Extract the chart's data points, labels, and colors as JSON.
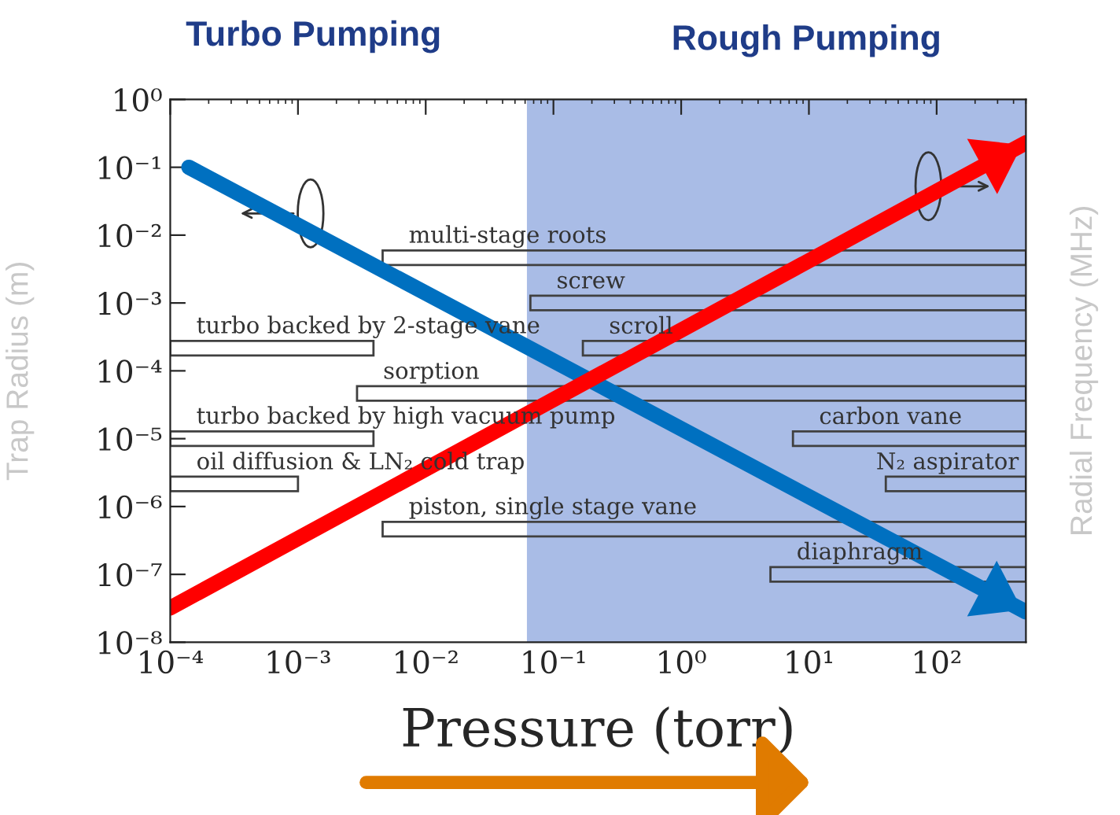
{
  "chart_data": [
    {
      "type": "bar",
      "orientation": "horizontal",
      "log": "x",
      "tick_labels": "x",
      "xlim": [
        0.0001,
        500
      ],
      "xticks": [
        {
          "value": 0.0001,
          "label": "10⁻⁴"
        },
        {
          "value": 0.001,
          "label": "10⁻³"
        },
        {
          "value": 0.01,
          "label": "10⁻²"
        },
        {
          "value": 0.1,
          "label": "10⁻¹"
        },
        {
          "value": 1,
          "label": "10⁰"
        },
        {
          "value": 10,
          "label": "10¹"
        },
        {
          "value": 100,
          "label": "10²"
        }
      ],
      "categories": [
        null,
        null,
        null,
        null,
        null,
        null,
        null,
        null,
        null,
        null,
        null,
        null
      ],
      "series": [
        {
          "color": "#404040",
          "base": [
            null,
            null,
            null,
            0.0046,
            0.066,
            0.17,
            0.0029,
            7.5,
            40,
            0.0046,
            5,
            null
          ],
          "values": [
            null,
            null,
            null,
            499.9,
            499.9,
            499.8,
            499.9,
            492,
            460,
            499.9,
            495,
            null
          ],
          "value_labels": [
            null,
            null,
            null,
            "multi-stage roots",
            "screw",
            "scroll",
            "sorption",
            "carbon vane",
            "N₂ aspirator",
            "piston, single stage vane",
            "diaphragm",
            null
          ]
        },
        {
          "color": "#404040",
          "base": [
            null,
            null,
            null,
            null,
            null,
            0.0001,
            null,
            0.0001,
            0.0001,
            null,
            null,
            null
          ],
          "values": [
            null,
            null,
            null,
            null,
            null,
            0.0038,
            null,
            0.0038,
            0.0009,
            null,
            null,
            null
          ],
          "value_labels": [
            null,
            null,
            null,
            null,
            null,
            "turbo backed by 2-stage vane",
            null,
            "turbo backed by high vacuum pump",
            "oil diffusion & LN₂ cold trap",
            null,
            null,
            null
          ]
        }
      ],
      "bands": [
        {
          "axis": "x",
          "from": 0.062,
          "to": 500,
          "color": "#a9bce6"
        }
      ],
      "annotations": [
        "Turbo Pumping",
        "Rough Pumping"
      ]
    },
    {
      "type": "line",
      "log": "xy",
      "tick_labels": "y",
      "xlim": [
        0.0001,
        500
      ],
      "ylim": [
        1e-08,
        1
      ],
      "yticks": [
        {
          "value": 1,
          "label": "10⁰"
        },
        {
          "value": 0.1,
          "label": "10⁻¹"
        },
        {
          "value": 0.01,
          "label": "10⁻²"
        },
        {
          "value": 0.001,
          "label": "10⁻³"
        },
        {
          "value": 0.0001,
          "label": "10⁻⁴"
        },
        {
          "value": 1e-05,
          "label": "10⁻⁵"
        },
        {
          "value": 1e-06,
          "label": "10⁻⁶"
        },
        {
          "value": 1e-07,
          "label": "10⁻⁷"
        },
        {
          "value": 1e-08,
          "label": "10⁻⁸"
        }
      ],
      "xlabel": "Pressure (torr)",
      "ylabel": "Trap Radius (m)",
      "y2label": "Radial Frequency (MHz)",
      "series": [
        {
          "color": "#0070c0",
          "x": [
            0.00014,
            500
          ],
          "values": [
            0.1,
            2.8e-08
          ]
        },
        {
          "color": "#ff0000",
          "x": [
            0.0001,
            500
          ],
          "values": [
            3.2e-08,
            0.23
          ]
        }
      ]
    }
  ]
}
